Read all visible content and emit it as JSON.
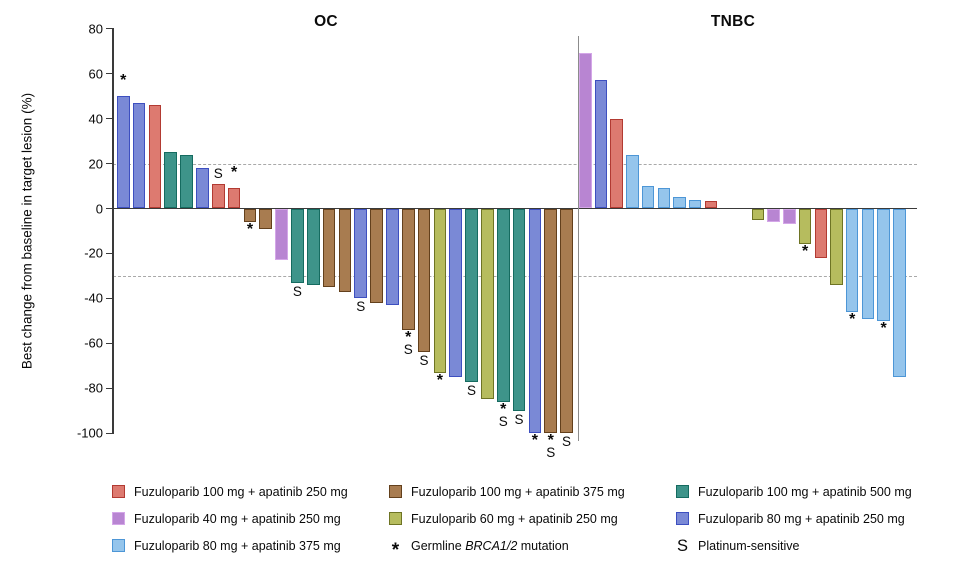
{
  "chart_data": {
    "type": "bar",
    "subtype": "waterfall",
    "title": "",
    "xlabel": "",
    "ylabel": "Best change from baseline in target lesion (%)",
    "ylim": [
      -100,
      80
    ],
    "yticks": [
      80,
      60,
      40,
      20,
      0,
      -20,
      -40,
      -60,
      -80,
      -100
    ],
    "reference_lines_y": [
      20,
      -30
    ],
    "grid": "dashed-thresholds-only",
    "legend_position": "bottom",
    "groups": {
      "red": {
        "label": "Fuzuloparib 100 mg + apatinib 250 mg",
        "fill": "#DD7A70",
        "border": "#B23A32"
      },
      "purple": {
        "label": "Fuzuloparib 40 mg + apatinib 250 mg",
        "fill": "#B885D2",
        "border": "#D4A6E8"
      },
      "lightblue": {
        "label": "Fuzuloparib 80 mg + apatinib 375 mg",
        "fill": "#95C5EC",
        "border": "#4D96D6"
      },
      "brown": {
        "label": "Fuzuloparib 100 mg + apatinib 375 mg",
        "fill": "#A87C50",
        "border": "#63401C"
      },
      "olive": {
        "label": "Fuzuloparib 60 mg + apatinib 250 mg",
        "fill": "#B6BC5E",
        "border": "#6E7424"
      },
      "teal": {
        "label": "Fuzuloparib 100 mg + apatinib 500 mg",
        "fill": "#3E948A",
        "border": "#156B60"
      },
      "slateblue": {
        "label": "Fuzuloparib 80 mg + apatinib 250 mg",
        "fill": "#7A89D6",
        "border": "#3D4FC0"
      }
    },
    "marker_meanings": {
      "*": "Germline BRCA1/2 mutation",
      "S": "Platinum-sensitive"
    },
    "panels": [
      {
        "title": "OC",
        "bars": [
          {
            "value": 50,
            "group": "slateblue",
            "marks": "*"
          },
          {
            "value": 47,
            "group": "slateblue",
            "marks": ""
          },
          {
            "value": 46,
            "group": "red",
            "marks": ""
          },
          {
            "value": 25,
            "group": "teal",
            "marks": ""
          },
          {
            "value": 24,
            "group": "teal",
            "marks": ""
          },
          {
            "value": 18,
            "group": "slateblue",
            "marks": ""
          },
          {
            "value": 11,
            "group": "red",
            "marks": "S"
          },
          {
            "value": 9,
            "group": "red",
            "marks": "*"
          },
          {
            "value": -6,
            "group": "brown",
            "marks": "*"
          },
          {
            "value": -9,
            "group": "brown",
            "marks": ""
          },
          {
            "value": -23,
            "group": "purple",
            "marks": ""
          },
          {
            "value": -33,
            "group": "teal",
            "marks": "S"
          },
          {
            "value": -34,
            "group": "teal",
            "marks": ""
          },
          {
            "value": -35,
            "group": "brown",
            "marks": ""
          },
          {
            "value": -37,
            "group": "brown",
            "marks": ""
          },
          {
            "value": -40,
            "group": "slateblue",
            "marks": "S"
          },
          {
            "value": -42,
            "group": "brown",
            "marks": ""
          },
          {
            "value": -43,
            "group": "slateblue",
            "marks": ""
          },
          {
            "value": -54,
            "group": "brown",
            "marks": "*S"
          },
          {
            "value": -64,
            "group": "brown",
            "marks": "S"
          },
          {
            "value": -73,
            "group": "olive",
            "marks": "*"
          },
          {
            "value": -75,
            "group": "slateblue",
            "marks": ""
          },
          {
            "value": -77,
            "group": "teal",
            "marks": "S"
          },
          {
            "value": -85,
            "group": "olive",
            "marks": ""
          },
          {
            "value": -86,
            "group": "teal",
            "marks": "*S"
          },
          {
            "value": -90,
            "group": "teal",
            "marks": "S"
          },
          {
            "value": -100,
            "group": "slateblue",
            "marks": "*"
          },
          {
            "value": -100,
            "group": "brown",
            "marks": "*S"
          },
          {
            "value": -100,
            "group": "brown",
            "marks": "S"
          }
        ]
      },
      {
        "title": "TNBC",
        "bars": [
          {
            "value": 69,
            "group": "purple",
            "marks": ""
          },
          {
            "value": 57,
            "group": "slateblue",
            "marks": ""
          },
          {
            "value": 40,
            "group": "red",
            "marks": ""
          },
          {
            "value": 24,
            "group": "lightblue",
            "marks": ""
          },
          {
            "value": 10,
            "group": "lightblue",
            "marks": ""
          },
          {
            "value": 9,
            "group": "lightblue",
            "marks": ""
          },
          {
            "value": 5,
            "group": "lightblue",
            "marks": ""
          },
          {
            "value": 4,
            "group": "lightblue",
            "marks": ""
          },
          {
            "value": 3.5,
            "group": "red",
            "marks": ""
          },
          {
            "value": 0,
            "group": null,
            "marks": ""
          },
          {
            "value": 0,
            "group": null,
            "marks": ""
          },
          {
            "value": -5,
            "group": "olive",
            "marks": ""
          },
          {
            "value": -6,
            "group": "purple",
            "marks": ""
          },
          {
            "value": -7,
            "group": "purple",
            "marks": ""
          },
          {
            "value": -16,
            "group": "olive",
            "marks": "*"
          },
          {
            "value": -22,
            "group": "red",
            "marks": ""
          },
          {
            "value": -34,
            "group": "olive",
            "marks": ""
          },
          {
            "value": -46,
            "group": "lightblue",
            "marks": "*"
          },
          {
            "value": -49,
            "group": "lightblue",
            "marks": ""
          },
          {
            "value": -50,
            "group": "lightblue",
            "marks": "*"
          },
          {
            "value": -75,
            "group": "lightblue",
            "marks": ""
          }
        ]
      }
    ]
  },
  "legend": {
    "columns": [
      {
        "items": [
          {
            "type": "swatch",
            "color": "red",
            "label": "Fuzuloparib 100 mg + apatinib 250 mg"
          },
          {
            "type": "swatch",
            "color": "purple",
            "label": "Fuzuloparib 40 mg + apatinib 250 mg"
          },
          {
            "type": "swatch",
            "color": "lightblue",
            "label": "Fuzuloparib 80 mg + apatinib 375 mg"
          }
        ]
      },
      {
        "items": [
          {
            "type": "swatch",
            "color": "brown",
            "label": "Fuzuloparib 100 mg + apatinib 375 mg"
          },
          {
            "type": "swatch",
            "color": "olive",
            "label": "Fuzuloparib 60 mg + apatinib 250 mg"
          },
          {
            "type": "marker",
            "symbol": "*",
            "parts": {
              "prefix": "Germline ",
              "italic": "BRCA1/2",
              "suffix": " mutation"
            }
          }
        ]
      },
      {
        "items": [
          {
            "type": "swatch",
            "color": "teal",
            "label": "Fuzuloparib 100 mg + apatinib 500 mg"
          },
          {
            "type": "swatch",
            "color": "slateblue",
            "label": "Fuzuloparib 80 mg + apatinib 250 mg"
          },
          {
            "type": "marker",
            "symbol": "S",
            "label": "Platinum-sensitive"
          }
        ]
      }
    ]
  }
}
